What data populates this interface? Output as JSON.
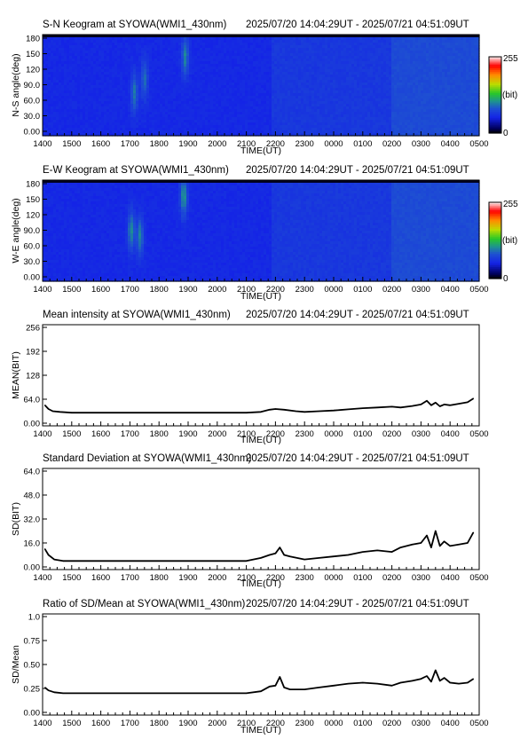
{
  "chart_data": [
    {
      "type": "heatmap",
      "title": "S-N Keogram at SYOWA(WMI1_430nm)",
      "time_range": "2025/07/20 14:04:29UT - 2025/07/21 04:51:09UT",
      "xlabel": "TIME(UT)",
      "ylabel": "N-S angle(deg)",
      "x_ticks": [
        "1400",
        "1500",
        "1600",
        "1700",
        "1800",
        "1900",
        "2000",
        "2100",
        "2200",
        "2300",
        "0000",
        "0100",
        "0200",
        "0300",
        "0400",
        "0500"
      ],
      "y_ticks": [
        "0.00",
        "30.0",
        "60.0",
        "90.0",
        "120",
        "150",
        "180"
      ],
      "ylim": [
        0,
        180
      ],
      "colorbar": {
        "ticks": [
          "255",
          "(bit)",
          "0"
        ],
        "range": [
          0,
          255
        ]
      },
      "features": [
        {
          "x": 3.15,
          "y": 75,
          "value": 120
        },
        {
          "x": 3.5,
          "y": 100,
          "value": 105
        },
        {
          "x": 4.9,
          "y": 140,
          "value": 130
        }
      ]
    },
    {
      "type": "heatmap",
      "title": "E-W Keogram at SYOWA(WMI1_430nm)",
      "time_range": "2025/07/20 14:04:29UT - 2025/07/21 04:51:09UT",
      "xlabel": "TIME(UT)",
      "ylabel": "W-E angle(deg)",
      "x_ticks": [
        "1400",
        "1500",
        "1600",
        "1700",
        "1800",
        "1900",
        "2000",
        "2100",
        "2200",
        "2300",
        "0000",
        "0100",
        "0200",
        "0300",
        "0400",
        "0500"
      ],
      "y_ticks": [
        "0.00",
        "30.0",
        "60.0",
        "90.0",
        "120",
        "150",
        "180"
      ],
      "ylim": [
        0,
        180
      ],
      "colorbar": {
        "ticks": [
          "255",
          "(bit)",
          "0"
        ],
        "range": [
          0,
          255
        ]
      },
      "features": [
        {
          "x": 3.05,
          "y": 90,
          "value": 140
        },
        {
          "x": 3.35,
          "y": 80,
          "value": 130
        },
        {
          "x": 4.85,
          "y": 150,
          "value": 150
        }
      ]
    },
    {
      "type": "line",
      "title": "Mean intensity at SYOWA(WMI1_430nm)",
      "time_range": "2025/07/20 14:04:29UT - 2025/07/21 04:51:09UT",
      "xlabel": "TIME(UT)",
      "ylabel": "MEAN(BIT)",
      "x_ticks": [
        "1400",
        "1500",
        "1600",
        "1700",
        "1800",
        "1900",
        "2000",
        "2100",
        "2200",
        "2300",
        "0000",
        "0100",
        "0200",
        "0300",
        "0400",
        "0500"
      ],
      "y_ticks": [
        "0.00",
        "64.0",
        "128",
        "192",
        "256"
      ],
      "ylim": [
        0,
        256
      ],
      "x": [
        0.08,
        0.2,
        0.35,
        0.6,
        1,
        2,
        3,
        4,
        5,
        6,
        7,
        7.5,
        7.8,
        8,
        8.3,
        8.7,
        9,
        9.5,
        10,
        10.5,
        11,
        11.5,
        12,
        12.3,
        12.7,
        13,
        13.2,
        13.35,
        13.5,
        13.65,
        13.8,
        14,
        14.3,
        14.6,
        14.8
      ],
      "y": [
        48,
        38,
        32,
        30,
        28,
        28,
        28,
        28,
        28,
        28,
        28,
        30,
        36,
        38,
        36,
        32,
        30,
        32,
        34,
        37,
        40,
        42,
        44,
        42,
        46,
        50,
        60,
        48,
        55,
        45,
        50,
        48,
        52,
        56,
        66
      ]
    },
    {
      "type": "line",
      "title": "Standard Deviation at SYOWA(WMI1_430nm)",
      "time_range": "2025/07/20 14:04:29UT - 2025/07/21 04:51:09UT",
      "xlabel": "TIME(UT)",
      "ylabel": "SD(BIT)",
      "x_ticks": [
        "1400",
        "1500",
        "1600",
        "1700",
        "1800",
        "1900",
        "2000",
        "2100",
        "2200",
        "2300",
        "0000",
        "0100",
        "0200",
        "0300",
        "0400",
        "0500"
      ],
      "y_ticks": [
        "0.00",
        "16.0",
        "32.0",
        "48.0",
        "64.0"
      ],
      "ylim": [
        0,
        64
      ],
      "x": [
        0.08,
        0.2,
        0.4,
        0.7,
        1,
        2,
        3,
        4,
        5,
        6,
        7,
        7.5,
        7.8,
        8,
        8.15,
        8.3,
        8.5,
        9,
        9.5,
        10,
        10.5,
        11,
        11.5,
        12,
        12.3,
        12.7,
        13,
        13.2,
        13.35,
        13.5,
        13.65,
        13.8,
        14,
        14.3,
        14.6,
        14.8
      ],
      "y": [
        12,
        8,
        5,
        4,
        4,
        4,
        4,
        4,
        4,
        4,
        4,
        6,
        8,
        9,
        13,
        8,
        7,
        5,
        6,
        7,
        8,
        10,
        11,
        10,
        13,
        15,
        16,
        21,
        13,
        24,
        14,
        17,
        14,
        15,
        16,
        23
      ]
    },
    {
      "type": "line",
      "title": "Ratio of SD/Mean at SYOWA(WMI1_430nm)",
      "time_range": "2025/07/20 14:04:29UT - 2025/07/21 04:51:09UT",
      "xlabel": "TIME(UT)",
      "ylabel": "SD/Mean",
      "x_ticks": [
        "1400",
        "1500",
        "1600",
        "1700",
        "1800",
        "1900",
        "2000",
        "2100",
        "2200",
        "2300",
        "0000",
        "0100",
        "0200",
        "0300",
        "0400",
        "0500"
      ],
      "y_ticks": [
        "0.00",
        "0.25",
        "0.50",
        "0.75",
        "1.0"
      ],
      "ylim": [
        0,
        1
      ],
      "x": [
        0.08,
        0.2,
        0.4,
        0.7,
        1,
        2,
        3,
        4,
        5,
        6,
        7,
        7.5,
        7.8,
        8,
        8.15,
        8.3,
        8.5,
        9,
        9.5,
        10,
        10.5,
        11,
        11.5,
        12,
        12.3,
        12.7,
        13,
        13.2,
        13.35,
        13.5,
        13.65,
        13.8,
        14,
        14.3,
        14.6,
        14.8
      ],
      "y": [
        0.26,
        0.23,
        0.21,
        0.2,
        0.2,
        0.2,
        0.2,
        0.2,
        0.2,
        0.2,
        0.2,
        0.22,
        0.27,
        0.28,
        0.37,
        0.26,
        0.24,
        0.24,
        0.26,
        0.28,
        0.3,
        0.31,
        0.3,
        0.28,
        0.31,
        0.33,
        0.35,
        0.38,
        0.32,
        0.44,
        0.33,
        0.36,
        0.31,
        0.3,
        0.31,
        0.35
      ]
    }
  ]
}
